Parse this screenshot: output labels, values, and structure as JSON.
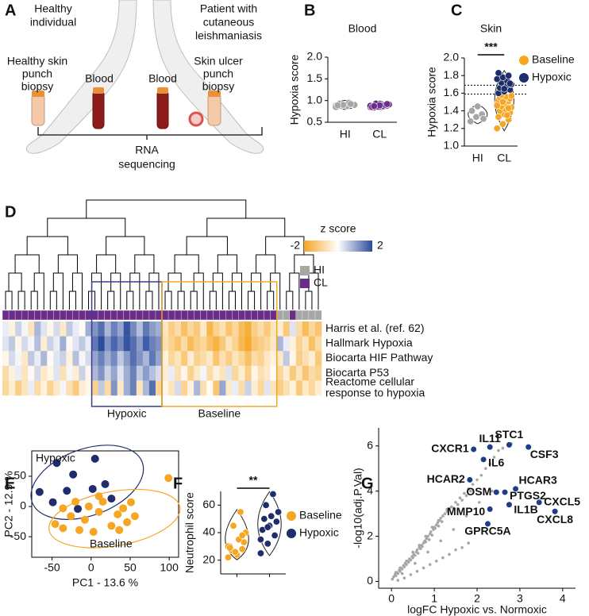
{
  "diagram": {
    "panel": "A",
    "healthy": [
      "Healthy",
      "individual"
    ],
    "patient": [
      "Patient with",
      "cutaneous",
      "leishmaniasis"
    ],
    "healthy_biopsy": [
      "Healthy skin",
      "punch",
      "biopsy"
    ],
    "blood_left": "Blood",
    "blood_right": "Blood",
    "ulcer_biopsy": [
      "Skin ulcer",
      "punch",
      "biopsy"
    ],
    "sequencing": [
      "RNA",
      "sequencing"
    ]
  },
  "chart_data": [
    {
      "panel": "B",
      "type": "violin",
      "title": "Blood",
      "y_label": "Hypoxia score",
      "ylim": [
        0.5,
        2.0
      ],
      "yticks": [
        {
          "value": 0.5,
          "label": "0.5"
        },
        {
          "value": 1,
          "label": "1.0"
        },
        {
          "value": 1.5,
          "label": "1.5"
        },
        {
          "value": 2,
          "label": "2.0"
        }
      ],
      "groups": [
        {
          "category": "HI",
          "color": "#a6a6a6",
          "values": [
            0.88,
            0.9,
            0.92,
            0.86,
            0.89,
            0.91,
            0.93,
            0.87,
            0.9,
            0.88,
            0.95,
            0.85,
            0.9,
            0.92,
            0.89
          ]
        },
        {
          "category": "CL",
          "color": "#6b2c8a",
          "values": [
            0.85,
            0.87,
            0.9,
            0.88,
            0.86,
            0.92,
            0.84,
            0.89,
            0.91,
            0.93,
            0.87,
            0.88,
            0.86,
            0.9,
            0.85,
            0.89,
            0.92,
            0.87
          ]
        }
      ]
    },
    {
      "panel": "C",
      "type": "violin",
      "title": "Skin",
      "y_label": "Hypoxia score",
      "significance": "***",
      "ylim": [
        1.0,
        2.0
      ],
      "yticks": [
        {
          "value": 1,
          "label": "1.0"
        },
        {
          "value": 1.2,
          "label": "1.2"
        },
        {
          "value": 1.4,
          "label": "1.4"
        },
        {
          "value": 1.6,
          "label": "1.6"
        },
        {
          "value": 1.8,
          "label": "1.8"
        },
        {
          "value": 2,
          "label": "2.0"
        }
      ],
      "thresholds": [
        1.59,
        1.69
      ],
      "groups": [
        {
          "category": "HI",
          "color": "#a6a6a6",
          "values": [
            1.28,
            1.33,
            1.36,
            1.4,
            1.45,
            1.31
          ]
        },
        {
          "category": "CL",
          "series": [
            {
              "name": "Baseline",
              "color": "#f5a623",
              "values": [
                1.2,
                1.25,
                1.3,
                1.33,
                1.36,
                1.38,
                1.4,
                1.42,
                1.44,
                1.45,
                1.47,
                1.48,
                1.5,
                1.51,
                1.52,
                1.53,
                1.54,
                1.55,
                1.56,
                1.57,
                1.58,
                1.35,
                1.46,
                1.5,
                1.43
              ]
            },
            {
              "name": "Hypoxic",
              "color": "#1f2d6b",
              "values": [
                1.6,
                1.62,
                1.64,
                1.66,
                1.68,
                1.7,
                1.72,
                1.74,
                1.76,
                1.78,
                1.8,
                1.83,
                1.65,
                1.71
              ]
            }
          ]
        }
      ]
    },
    {
      "panel": "D",
      "type": "heatmap",
      "colorbar_title": "z score",
      "zlim": [
        -2,
        2
      ],
      "colorbar_ticks": [
        -2,
        2
      ],
      "low_color": "#f5a623",
      "mid_color": "#ffffff",
      "high_color": "#2b4b9b",
      "groups": [
        {
          "name": "HI",
          "color": "#a6a6a6"
        },
        {
          "name": "CL",
          "color": "#6b2c8a"
        }
      ],
      "sample_groups": [
        "CL",
        "CL",
        "CL",
        "CL",
        "CL",
        "CL",
        "CL",
        "CL",
        "CL",
        "CL",
        "CL",
        "CL",
        "CL",
        "CL",
        "CL",
        "CL",
        "CL",
        "CL",
        "CL",
        "CL",
        "CL",
        "CL",
        "CL",
        "CL",
        "CL",
        "CL",
        "CL",
        "CL",
        "CL",
        "CL",
        "CL",
        "CL",
        "CL",
        "CL",
        "CL",
        "CL",
        "CL",
        "CL",
        "CL",
        "CL",
        "CL",
        "CL",
        "CL",
        "HI",
        "HI",
        "CL",
        "HI",
        "HI",
        "HI",
        "HI"
      ],
      "boxes": [
        {
          "label": "Hypoxic",
          "color": "#3b3b9a",
          "start": 14,
          "end": 24
        },
        {
          "label": "Baseline",
          "color": "#f5a623",
          "start": 25,
          "end": 42
        }
      ],
      "rows": [
        {
          "label": [
            "Harris et al. (ref. 62)"
          ],
          "values": [
            0.2,
            -0.3,
            0.5,
            0.1,
            -0.6,
            0.8,
            0.3,
            -0.2,
            0.4,
            -0.5,
            0.6,
            0.2,
            -0.1,
            0.9,
            1.2,
            1.6,
            0.8,
            1.4,
            1.0,
            1.9,
            1.3,
            0.7,
            1.5,
            1.1,
            0.9,
            -0.6,
            -1.1,
            -0.8,
            -1.4,
            -0.9,
            -1.2,
            -0.5,
            -1.6,
            -1.0,
            -0.7,
            -1.3,
            -0.9,
            -1.5,
            -1.8,
            -1.1,
            -0.8,
            -1.2,
            -0.6,
            -0.4,
            -1.2,
            0.3,
            -0.8,
            -1.5,
            -0.9,
            -1.3
          ]
        },
        {
          "label": [
            "Hallmark Hypoxia"
          ],
          "values": [
            0.3,
            0.6,
            -0.2,
            0.4,
            0.1,
            0.7,
            -0.4,
            0.5,
            0.2,
            0.9,
            -0.1,
            0.3,
            0.6,
            0.2,
            1.5,
            2.0,
            1.2,
            1.7,
            1.3,
            1.9,
            1.6,
            1.1,
            1.8,
            1.4,
            1.2,
            -0.7,
            -1.0,
            -1.3,
            -0.8,
            -1.5,
            -1.1,
            -0.9,
            -1.4,
            -1.7,
            -1.2,
            -0.6,
            -1.0,
            -1.6,
            -1.9,
            -1.3,
            -1.1,
            -0.9,
            -0.5,
            0.8,
            0.2,
            -0.3,
            -1.0,
            -0.6,
            -1.4,
            -0.8
          ]
        },
        {
          "label": [
            "Biocarta HIF Pathway"
          ],
          "values": [
            -0.2,
            0.4,
            0.1,
            -0.5,
            0.6,
            0.2,
            0.8,
            -0.1,
            0.3,
            0.5,
            -0.3,
            0.7,
            0.1,
            0.4,
            1.0,
            1.4,
            0.9,
            1.3,
            0.6,
            1.1,
            1.6,
            1.2,
            0.8,
            1.5,
            1.0,
            -0.3,
            -0.9,
            -0.6,
            -1.2,
            -0.4,
            -1.0,
            -0.8,
            -0.5,
            -1.3,
            -0.7,
            -1.1,
            -0.6,
            -0.9,
            -1.4,
            -0.8,
            -1.0,
            -0.5,
            -0.3,
            -0.5,
            0.6,
            -0.2,
            -1.1,
            -0.7,
            -0.4,
            -1.2
          ]
        },
        {
          "label": [
            "Biocarta P53"
          ],
          "values": [
            -0.8,
            -0.3,
            0.2,
            -0.6,
            -0.1,
            0.4,
            -0.5,
            -0.2,
            0.3,
            -0.7,
            0.1,
            -0.4,
            0.5,
            -0.2,
            0.8,
            1.2,
            0.5,
            1.0,
            0.3,
            0.9,
            1.4,
            0.6,
            1.1,
            0.7,
            0.4,
            -0.4,
            0.2,
            -0.7,
            -0.2,
            -1.0,
            -0.5,
            0.1,
            -0.8,
            -0.3,
            -0.6,
            0.3,
            -0.9,
            -0.4,
            -1.1,
            -0.2,
            -0.7,
            -0.5,
            -0.1,
            -0.9,
            -0.4,
            -1.2,
            -0.6,
            -1.3,
            -0.8,
            -1.0
          ]
        },
        {
          "label": [
            "Reactome cellular",
            "response to hypoxia"
          ],
          "values": [
            -0.9,
            -0.4,
            -1.1,
            -0.6,
            0.2,
            -0.8,
            -0.3,
            -1.0,
            -0.5,
            0.1,
            -0.7,
            -1.2,
            -0.4,
            -0.2,
            -1.0,
            0.6,
            -0.8,
            1.2,
            -0.5,
            0.9,
            1.4,
            -0.6,
            0.8,
            1.6,
            -0.9,
            -0.2,
            -0.6,
            0.4,
            -1.0,
            -0.3,
            0.8,
            -0.7,
            -0.1,
            -1.3,
            1.0,
            -0.5,
            0.2,
            -0.8,
            0.5,
            -0.4,
            -0.9,
            0.3,
            -0.6,
            -1.1,
            -0.7,
            -0.3,
            -1.2,
            -0.5,
            -0.9,
            -0.4
          ]
        }
      ]
    },
    {
      "panel": "E",
      "type": "scatter",
      "x_label": "PC1 - 13.6 %",
      "y_label": "PC2 - 12.9 %",
      "xlim": [
        -76,
        112
      ],
      "ylim": [
        -84,
        92
      ],
      "xticks": [
        -50,
        0,
        50,
        100
      ],
      "yticks": [
        -50,
        0,
        50
      ],
      "series": [
        {
          "name": "Hypoxic",
          "color": "#1f2d6b",
          "x": [
            -44,
            -23,
            5,
            -66,
            -31,
            -49,
            2,
            18,
            -17,
            26
          ],
          "y": [
            72,
            53,
            79,
            24,
            26,
            7,
            29,
            37,
            -4,
            13
          ],
          "ellipse": {
            "cx": -5,
            "cy": 40,
            "rx": 75,
            "ry": 55,
            "angle": -20
          }
        },
        {
          "name": "Baseline",
          "color": "#f5a623",
          "x": [
            99,
            -46,
            -36,
            -26,
            -15,
            -8,
            -3,
            10,
            15,
            26,
            34,
            41,
            46,
            51,
            56,
            36,
            10,
            3,
            -20,
            -36
          ],
          "y": [
            47,
            -29,
            -36,
            -16,
            -39,
            -22,
            0,
            -9,
            8,
            -32,
            -13,
            -3,
            -26,
            7,
            -16,
            -39,
            17,
            -42,
            8,
            -3
          ],
          "ellipse": {
            "cx": 30,
            "cy": -20,
            "rx": 85,
            "ry": 45,
            "angle": -10
          }
        }
      ]
    },
    {
      "panel": "F",
      "type": "violin",
      "y_label": "Neutrophil score",
      "significance": "**",
      "ylim": [
        10,
        70
      ],
      "yticks": [
        20,
        40,
        60
      ],
      "groups": [
        {
          "series": [
            {
              "name": "Baseline",
              "color": "#f5a623",
              "values": [
                22,
                25,
                28,
                30,
                24,
                33,
                27,
                35,
                40,
                45,
                55,
                30,
                26,
                38,
                29
              ]
            }
          ]
        },
        {
          "series": [
            {
              "name": "Hypoxic",
              "color": "#1f2d6b",
              "values": [
                25,
                32,
                38,
                42,
                45,
                48,
                50,
                52,
                55,
                60,
                68,
                35,
                44
              ]
            }
          ]
        }
      ]
    },
    {
      "panel": "G",
      "type": "volcano",
      "x_label": "logFC Hypoxic vs. Normoxic",
      "y_label": "-log10(adj.P.Val)",
      "xlim": [
        -0.3,
        4.3
      ],
      "ylim": [
        -0.3,
        6.8
      ],
      "xticks": [
        0,
        1,
        2,
        3,
        4
      ],
      "yticks": [
        0,
        2,
        4,
        6
      ],
      "color": "#a6a6a6",
      "highlight_color": "#1f3c88",
      "x": [
        0.02,
        0.05,
        0.08,
        0.1,
        0.12,
        0.15,
        0.18,
        0.2,
        0.22,
        0.25,
        0.28,
        0.3,
        0.32,
        0.35,
        0.38,
        0.4,
        0.42,
        0.45,
        0.48,
        0.5,
        0.52,
        0.55,
        0.58,
        0.6,
        0.62,
        0.65,
        0.68,
        0.7,
        0.72,
        0.75,
        0.78,
        0.8,
        0.82,
        0.85,
        0.88,
        0.9,
        0.92,
        0.95,
        0.98,
        1.0,
        1.02,
        1.05,
        1.08,
        1.1,
        1.12,
        1.15,
        1.18,
        1.2,
        1.25,
        1.3,
        1.35,
        1.4,
        1.45,
        1.5,
        1.55,
        1.6,
        1.65,
        1.7,
        1.75,
        1.8,
        1.85,
        1.9,
        2.0,
        2.1,
        2.2,
        2.3,
        2.4,
        2.5,
        0.15,
        0.3,
        0.45,
        0.6,
        0.75,
        0.9,
        1.05,
        1.2,
        1.35,
        1.5,
        1.65,
        1.8,
        0.1,
        0.2,
        0.35,
        0.5,
        0.65,
        0.8,
        0.95,
        1.1,
        1.3,
        1.6,
        2.6,
        2.8,
        0.25,
        0.55,
        0.85,
        1.15,
        1.45,
        1.75,
        2.05,
        2.35
      ],
      "y": [
        0.1,
        0.2,
        0.3,
        0.25,
        0.4,
        0.35,
        0.5,
        0.45,
        0.6,
        0.55,
        0.7,
        0.65,
        0.8,
        0.75,
        0.9,
        0.85,
        1.0,
        0.95,
        1.1,
        1.05,
        1.2,
        1.15,
        1.3,
        1.4,
        1.25,
        1.5,
        1.45,
        1.6,
        1.55,
        1.7,
        1.8,
        1.75,
        1.9,
        2.0,
        1.85,
        2.1,
        2.2,
        2.05,
        2.3,
        2.4,
        2.35,
        2.5,
        2.6,
        2.45,
        2.7,
        2.8,
        2.65,
        2.9,
        3.0,
        3.1,
        3.2,
        3.3,
        3.25,
        3.5,
        3.4,
        3.7,
        3.6,
        3.9,
        3.8,
        4.1,
        4.0,
        4.3,
        4.5,
        4.7,
        5.0,
        5.2,
        5.5,
        5.8,
        0.05,
        0.15,
        0.3,
        0.45,
        0.6,
        0.75,
        0.9,
        1.05,
        1.2,
        1.4,
        1.5,
        1.7,
        0.4,
        0.6,
        0.9,
        1.3,
        1.6,
        2.0,
        2.4,
        2.7,
        3.2,
        4.4,
        5.9,
        6.1,
        0.35,
        0.8,
        1.3,
        1.8,
        2.3,
        2.9,
        3.5,
        4.0
      ],
      "genes": {
        "names": [
          "STC1",
          "CSF3",
          "CXCR1",
          "IL11",
          "IL6",
          "HCAR2",
          "HCAR3",
          "OSM",
          "PTGS2",
          "IL1B",
          "CXCL5",
          "CXCL8",
          "MMP10",
          "GPRC5A"
        ],
        "x": [
          2.75,
          3.2,
          1.92,
          2.3,
          2.15,
          1.83,
          2.9,
          2.45,
          2.65,
          2.75,
          3.45,
          3.82,
          2.3,
          2.25
        ],
        "y": [
          6.05,
          5.95,
          5.85,
          5.95,
          5.4,
          4.5,
          4.1,
          3.95,
          3.95,
          3.4,
          3.5,
          3.1,
          3.2,
          2.55
        ]
      }
    }
  ]
}
